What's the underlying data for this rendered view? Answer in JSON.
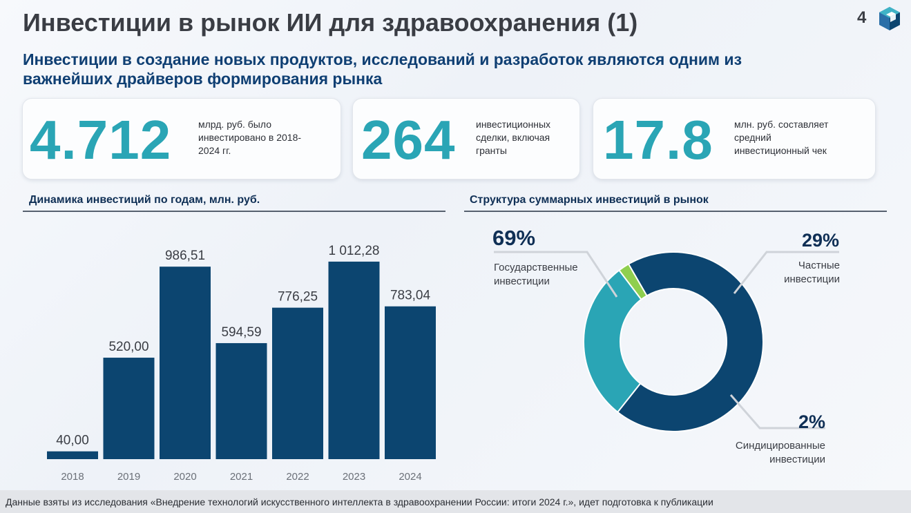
{
  "header": {
    "title": "Инвестиции в рынок ИИ для здравоохранения (1)",
    "page_number": "4",
    "subtitle_line1": "Инвестиции в создание новых продуктов, исследований и разработок являются одним из",
    "subtitle_line2": "важнейших драйверов формирования рынка"
  },
  "kpis": [
    {
      "value": "4.712",
      "line1": "млрд. руб. было",
      "line2": "инвестировано в 2018-",
      "line3": "2024 гг."
    },
    {
      "value": "264",
      "line1": "инвестиционных",
      "line2": "сделки, включая",
      "line3": "гранты"
    },
    {
      "value": "17.8",
      "line1": "млн. руб. составляет",
      "line2": "средний",
      "line3": "инвестиционный чек"
    }
  ],
  "sections": {
    "bar_title": "Динамика инвестиций по годам, млн. руб.",
    "donut_title": "Структура суммарных инвестиций в рынок"
  },
  "chart_data": [
    {
      "type": "bar",
      "title": "Динамика инвестиций по годам, млн. руб.",
      "categories": [
        "2018",
        "2019",
        "2020",
        "2021",
        "2022",
        "2023",
        "2024"
      ],
      "values": [
        40.0,
        520.0,
        986.51,
        594.59,
        776.25,
        1012.28,
        783.04
      ],
      "labels": [
        "40,00",
        "520,00",
        "986,51",
        "594,59",
        "776,25",
        "1 012,28",
        "783,04"
      ],
      "ylim": [
        0,
        1150
      ],
      "color": "#0c4570"
    },
    {
      "type": "pie",
      "title": "Структура суммарных инвестиций в рынок",
      "slices": [
        {
          "label_line1": "Государственные",
          "label_line2": "инвестиции",
          "value": 69,
          "pct": "69%",
          "color": "#0c4570"
        },
        {
          "label_line1": "Частные",
          "label_line2": "инвестиции",
          "value": 29,
          "pct": "29%",
          "color": "#2aa5b5"
        },
        {
          "label_line1": "Синдицированные",
          "label_line2": "инвестиции",
          "value": 2,
          "pct": "2%",
          "color": "#8fcf4f"
        }
      ]
    }
  ],
  "footer": {
    "text": "Данные взяты из исследования «Внедрение технологий искусственного интеллекта в здравоохранении России: итоги 2024 г.», идет подготовка к публикации"
  },
  "colors": {
    "accent": "#2aa5b5",
    "navy": "#0c4570",
    "subtitle": "#0f3f73"
  }
}
